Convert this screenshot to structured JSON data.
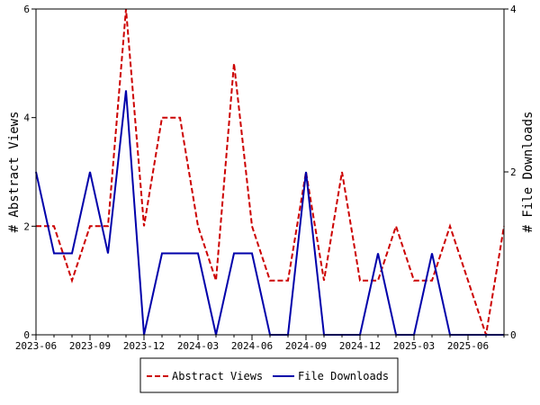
{
  "chart_data": {
    "type": "line",
    "x": [
      "2023-06",
      "2023-07",
      "2023-08",
      "2023-09",
      "2023-10",
      "2023-11",
      "2023-12",
      "2024-01",
      "2024-02",
      "2024-03",
      "2024-04",
      "2024-05",
      "2024-06",
      "2024-07",
      "2024-08",
      "2024-09",
      "2024-10",
      "2024-11",
      "2024-12",
      "2025-01",
      "2025-02",
      "2025-03",
      "2025-04",
      "2025-05",
      "2025-06",
      "2025-07",
      "2025-08"
    ],
    "x_ticks": [
      "2023-06",
      "2023-09",
      "2023-12",
      "2024-03",
      "2024-06",
      "2024-09",
      "2024-12",
      "2025-03",
      "2025-06"
    ],
    "ylabel_left": "# Abstract Views",
    "ylabel_right": "# File Downloads",
    "ylim_left": [
      0,
      6
    ],
    "ylim_right": [
      0,
      4
    ],
    "yticks_left": [
      0,
      2,
      4,
      6
    ],
    "yticks_right": [
      0,
      2,
      4
    ],
    "series": [
      {
        "name": "Abstract Views",
        "axis": "left",
        "color": "#cc0000",
        "style": "dashed",
        "values": [
          2,
          2,
          1,
          2,
          2,
          6,
          2,
          4,
          4,
          2,
          1,
          5,
          2,
          1,
          1,
          3,
          1,
          3,
          1,
          1,
          2,
          1,
          1,
          2,
          1,
          0,
          2
        ]
      },
      {
        "name": "File Downloads",
        "axis": "right",
        "color": "#0000aa",
        "style": "solid",
        "values": [
          2,
          1,
          1,
          2,
          1,
          3,
          0,
          1,
          1,
          1,
          0,
          1,
          1,
          0,
          0,
          2,
          0,
          0,
          0,
          1,
          0,
          0,
          1,
          0,
          0,
          0,
          0
        ]
      }
    ],
    "grid": false,
    "legend_placement": "bottom-center"
  }
}
